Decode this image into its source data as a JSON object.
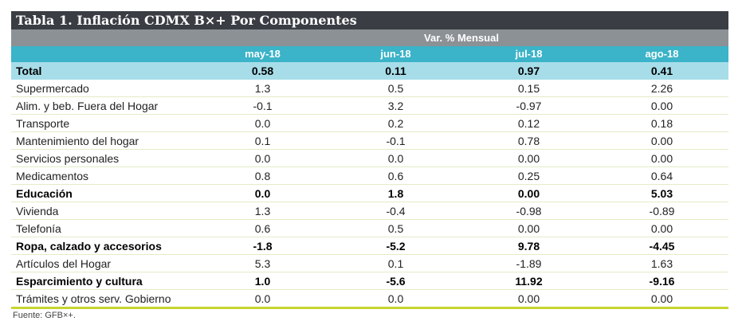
{
  "table": {
    "title": "Tabla 1. Inflación CDMX B×+ Por Componentes",
    "subheader": "Var. % Mensual",
    "columns": [
      "may-18",
      "jun-18",
      "jul-18",
      "ago-18"
    ],
    "rows": [
      {
        "label": "Total",
        "values": [
          "0.58",
          "0.11",
          "0.97",
          "0.41"
        ],
        "style": "total"
      },
      {
        "label": "Supermercado",
        "values": [
          "1.3",
          "0.5",
          "0.15",
          "2.26"
        ],
        "style": "normal"
      },
      {
        "label": "Alim. y beb. Fuera del Hogar",
        "values": [
          "-0.1",
          "3.2",
          "-0.97",
          "0.00"
        ],
        "style": "normal"
      },
      {
        "label": "Transporte",
        "values": [
          "0.0",
          "0.2",
          "0.12",
          "0.18"
        ],
        "style": "normal"
      },
      {
        "label": "Mantenimiento del hogar",
        "values": [
          "0.1",
          "-0.1",
          "0.78",
          "0.00"
        ],
        "style": "normal"
      },
      {
        "label": "Servicios personales",
        "values": [
          "0.0",
          "0.0",
          "0.00",
          "0.00"
        ],
        "style": "normal"
      },
      {
        "label": "Medicamentos",
        "values": [
          "0.8",
          "0.6",
          "0.25",
          "0.64"
        ],
        "style": "normal"
      },
      {
        "label": "Educación",
        "values": [
          "0.0",
          "1.8",
          "0.00",
          "5.03"
        ],
        "style": "bold"
      },
      {
        "label": "Vivienda",
        "values": [
          "1.3",
          "-0.4",
          "-0.98",
          "-0.89"
        ],
        "style": "normal"
      },
      {
        "label": "Telefonía",
        "values": [
          "0.6",
          "0.5",
          "0.00",
          "0.00"
        ],
        "style": "normal"
      },
      {
        "label": "Ropa, calzado y accesorios",
        "values": [
          "-1.8",
          "-5.2",
          "9.78",
          "-4.45"
        ],
        "style": "bold"
      },
      {
        "label": "Artículos del Hogar",
        "values": [
          "5.3",
          "0.1",
          "-1.89",
          "1.63"
        ],
        "style": "normal"
      },
      {
        "label": "Esparcimiento y cultura",
        "values": [
          "1.0",
          "-5.6",
          "11.92",
          "-9.16"
        ],
        "style": "bold"
      },
      {
        "label": "Trámites y otros serv. Gobierno",
        "values": [
          "0.0",
          "0.0",
          "0.00",
          "0.00"
        ],
        "style": "normal"
      }
    ],
    "source": "Fuente: GFB×+."
  },
  "colors": {
    "title_bg": "#3a3e44",
    "subheader_bg": "#8c9196",
    "column_header_bg": "#3bb3c8",
    "total_row_bg": "#a7dde9",
    "accent_line": "#c6d630"
  }
}
